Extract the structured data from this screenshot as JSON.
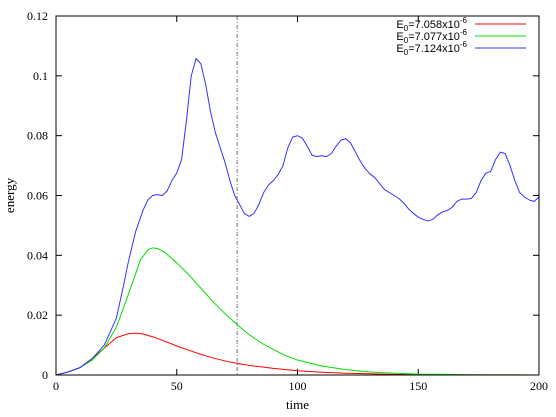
{
  "chart_data": {
    "type": "line",
    "xlabel": "time",
    "ylabel": "energy",
    "xlim": [
      0,
      200
    ],
    "ylim": [
      0,
      0.12
    ],
    "x_ticks": [
      0,
      50,
      100,
      150,
      200
    ],
    "y_ticks": [
      0,
      0.02,
      0.04,
      0.06,
      0.08,
      0.1,
      0.12
    ],
    "x_tick_labels": [
      "0",
      "50",
      "100",
      "150",
      "200"
    ],
    "y_tick_labels": [
      "0",
      "0.02",
      "0.04",
      "0.06",
      "0.08",
      "0.1",
      "0.12"
    ],
    "vertical_marker": {
      "x": 75,
      "style": "dash-dot",
      "color": "#777777"
    },
    "legend_position": "top-right",
    "grid": false,
    "series": [
      {
        "name": "E0=7.058x10-6",
        "label_base": "E",
        "label_sub": "0",
        "label_mid": "=7.058x10",
        "label_sup": "-6",
        "color": "#ff0000",
        "points": [
          [
            0,
            0
          ],
          [
            5,
            0.001
          ],
          [
            10,
            0.0025
          ],
          [
            15,
            0.0055
          ],
          [
            20,
            0.009
          ],
          [
            25,
            0.0125
          ],
          [
            30,
            0.0138
          ],
          [
            33,
            0.014
          ],
          [
            36,
            0.0137
          ],
          [
            40,
            0.0128
          ],
          [
            45,
            0.0113
          ],
          [
            50,
            0.0097
          ],
          [
            55,
            0.0083
          ],
          [
            60,
            0.0069
          ],
          [
            65,
            0.0057
          ],
          [
            70,
            0.0047
          ],
          [
            75,
            0.0039
          ],
          [
            80,
            0.0032
          ],
          [
            90,
            0.0022
          ],
          [
            100,
            0.0014
          ],
          [
            110,
            0.0009
          ],
          [
            120,
            0.0006
          ],
          [
            130,
            0.0004
          ],
          [
            140,
            0.0002
          ],
          [
            150,
            0.00015
          ],
          [
            160,
            0.0001
          ],
          [
            180,
            4e-05
          ],
          [
            200,
            1e-05
          ]
        ]
      },
      {
        "name": "E0=7.077x10-6",
        "label_base": "E",
        "label_sub": "0",
        "label_mid": "=7.077x10",
        "label_sup": "-6",
        "color": "#00dd00",
        "points": [
          [
            0,
            0
          ],
          [
            5,
            0.001
          ],
          [
            10,
            0.0025
          ],
          [
            15,
            0.005
          ],
          [
            20,
            0.009
          ],
          [
            25,
            0.016
          ],
          [
            30,
            0.027
          ],
          [
            35,
            0.0385
          ],
          [
            38,
            0.0418
          ],
          [
            40,
            0.0425
          ],
          [
            42,
            0.0423
          ],
          [
            45,
            0.041
          ],
          [
            50,
            0.0375
          ],
          [
            55,
            0.0335
          ],
          [
            60,
            0.029
          ],
          [
            65,
            0.0245
          ],
          [
            70,
            0.0205
          ],
          [
            75,
            0.0168
          ],
          [
            80,
            0.0135
          ],
          [
            85,
            0.0107
          ],
          [
            90,
            0.0085
          ],
          [
            95,
            0.0065
          ],
          [
            100,
            0.005
          ],
          [
            110,
            0.003
          ],
          [
            120,
            0.0018
          ],
          [
            130,
            0.001
          ],
          [
            140,
            0.0006
          ],
          [
            150,
            0.0003
          ],
          [
            160,
            0.0002
          ],
          [
            170,
            0.0001
          ],
          [
            180,
            5e-05
          ],
          [
            200,
            2e-05
          ]
        ]
      },
      {
        "name": "E0=7.124x10-6",
        "label_base": "E",
        "label_sub": "0",
        "label_mid": "=7.124x10",
        "label_sup": "-6",
        "color": "#3333ff",
        "points": [
          [
            0,
            0
          ],
          [
            5,
            0.001
          ],
          [
            10,
            0.0025
          ],
          [
            15,
            0.0055
          ],
          [
            20,
            0.01
          ],
          [
            25,
            0.019
          ],
          [
            28,
            0.03
          ],
          [
            30,
            0.038
          ],
          [
            33,
            0.048
          ],
          [
            36,
            0.055
          ],
          [
            38,
            0.0585
          ],
          [
            40,
            0.06
          ],
          [
            42,
            0.0603
          ],
          [
            44,
            0.06
          ],
          [
            46,
            0.0615
          ],
          [
            48,
            0.065
          ],
          [
            50,
            0.0675
          ],
          [
            52,
            0.072
          ],
          [
            54,
            0.085
          ],
          [
            56,
            0.1
          ],
          [
            58,
            0.1058
          ],
          [
            60,
            0.104
          ],
          [
            62,
            0.097
          ],
          [
            64,
            0.088
          ],
          [
            66,
            0.081
          ],
          [
            68,
            0.076
          ],
          [
            70,
            0.071
          ],
          [
            72,
            0.065
          ],
          [
            74,
            0.06
          ],
          [
            76,
            0.057
          ],
          [
            78,
            0.054
          ],
          [
            80,
            0.053
          ],
          [
            82,
            0.054
          ],
          [
            84,
            0.057
          ],
          [
            86,
            0.061
          ],
          [
            88,
            0.0635
          ],
          [
            90,
            0.065
          ],
          [
            92,
            0.067
          ],
          [
            94,
            0.07
          ],
          [
            96,
            0.076
          ],
          [
            98,
            0.0795
          ],
          [
            100,
            0.08
          ],
          [
            102,
            0.0792
          ],
          [
            104,
            0.0765
          ],
          [
            106,
            0.0735
          ],
          [
            108,
            0.073
          ],
          [
            110,
            0.0733
          ],
          [
            112,
            0.073
          ],
          [
            114,
            0.074
          ],
          [
            116,
            0.0765
          ],
          [
            118,
            0.0785
          ],
          [
            120,
            0.079
          ],
          [
            122,
            0.0775
          ],
          [
            124,
            0.0745
          ],
          [
            126,
            0.0715
          ],
          [
            128,
            0.069
          ],
          [
            130,
            0.0672
          ],
          [
            132,
            0.066
          ],
          [
            134,
            0.064
          ],
          [
            136,
            0.062
          ],
          [
            138,
            0.061
          ],
          [
            140,
            0.06
          ],
          [
            142,
            0.059
          ],
          [
            144,
            0.0575
          ],
          [
            146,
            0.0555
          ],
          [
            148,
            0.054
          ],
          [
            150,
            0.0528
          ],
          [
            152,
            0.052
          ],
          [
            154,
            0.0515
          ],
          [
            156,
            0.052
          ],
          [
            158,
            0.0535
          ],
          [
            160,
            0.0545
          ],
          [
            162,
            0.055
          ],
          [
            164,
            0.056
          ],
          [
            166,
            0.058
          ],
          [
            168,
            0.0588
          ],
          [
            170,
            0.0588
          ],
          [
            172,
            0.059
          ],
          [
            174,
            0.061
          ],
          [
            176,
            0.065
          ],
          [
            178,
            0.0675
          ],
          [
            180,
            0.068
          ],
          [
            182,
            0.072
          ],
          [
            184,
            0.0745
          ],
          [
            186,
            0.074
          ],
          [
            188,
            0.07
          ],
          [
            190,
            0.065
          ],
          [
            192,
            0.061
          ],
          [
            194,
            0.0595
          ],
          [
            196,
            0.0585
          ],
          [
            198,
            0.058
          ],
          [
            200,
            0.0595
          ]
        ]
      }
    ]
  }
}
